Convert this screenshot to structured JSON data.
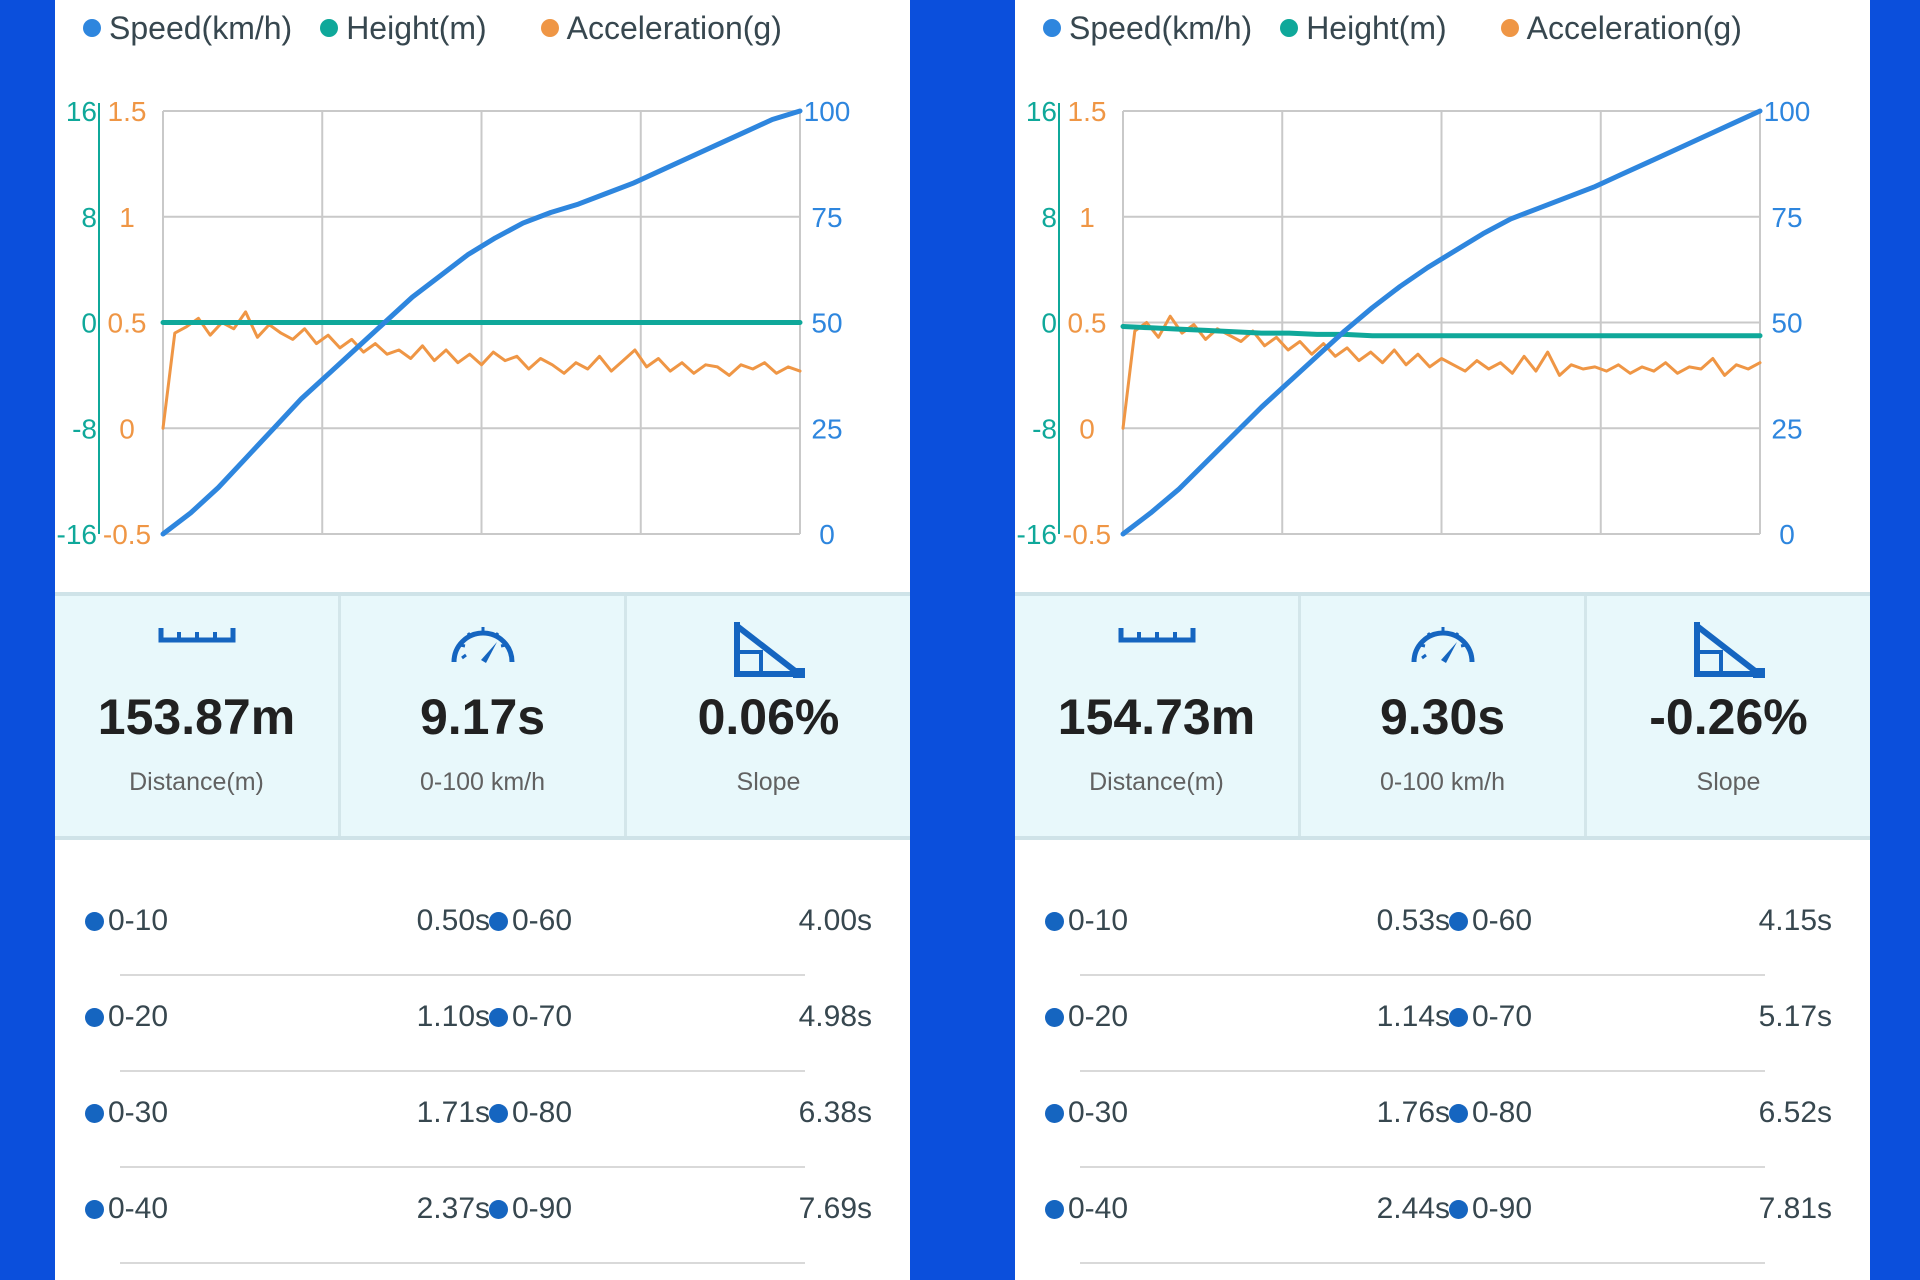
{
  "colors": {
    "speed": "#2e86de",
    "height": "#0fa89a",
    "acceleration": "#ef9645",
    "accent": "#1565c0",
    "background": "#0b4fdc"
  },
  "panels": [
    {
      "legend": [
        "Speed(km/h)",
        "Height(m)",
        "Acceleration(g)"
      ],
      "chart_data": {
        "type": "line",
        "axes": {
          "left_height": {
            "ticks": [
              "16",
              "8",
              "0",
              "-8",
              "-16"
            ],
            "range": [
              -16,
              16
            ]
          },
          "left_accel": {
            "ticks": [
              "1.5",
              "1",
              "0.5",
              "0",
              "-0.5"
            ],
            "range": [
              -0.5,
              1.5
            ]
          },
          "right_speed": {
            "ticks": [
              "100",
              "75",
              "50",
              "25",
              "0"
            ],
            "range": [
              0,
              100
            ]
          }
        },
        "grid": true,
        "legend_placement": "top",
        "series": [
          {
            "name": "Speed(km/h)",
            "axis": "right_speed",
            "values": [
              0,
              5,
              11,
              18,
              25,
              32,
              38,
              44,
              50,
              56,
              61,
              66,
              70,
              73.5,
              76,
              78,
              80.5,
              83,
              86,
              89,
              92,
              95,
              98,
              100
            ]
          },
          {
            "name": "Height(m)",
            "axis": "left_height",
            "values": [
              0,
              0,
              0,
              0,
              0,
              0,
              0,
              0,
              0,
              0,
              0,
              0,
              0,
              0,
              0,
              0,
              0,
              0,
              0,
              0,
              0,
              0,
              0,
              0
            ]
          },
          {
            "name": "Acceleration(g)",
            "axis": "left_accel",
            "values": [
              0,
              0.45,
              0.48,
              0.52,
              0.44,
              0.5,
              0.47,
              0.55,
              0.43,
              0.49,
              0.45,
              0.42,
              0.47,
              0.4,
              0.44,
              0.38,
              0.42,
              0.36,
              0.4,
              0.35,
              0.37,
              0.33,
              0.39,
              0.32,
              0.37,
              0.31,
              0.35,
              0.3,
              0.36,
              0.32,
              0.34,
              0.28,
              0.33,
              0.3,
              0.26,
              0.31,
              0.28,
              0.34,
              0.27,
              0.32,
              0.37,
              0.29,
              0.33,
              0.27,
              0.31,
              0.26,
              0.3,
              0.29,
              0.25,
              0.3,
              0.28,
              0.31,
              0.26,
              0.29,
              0.27
            ]
          }
        ]
      },
      "stats": [
        {
          "value": "153.87m",
          "label": "Distance(m)",
          "icon": "ruler-icon"
        },
        {
          "value": "9.17s",
          "label": "0-100 km/h",
          "icon": "speedometer-icon"
        },
        {
          "value": "0.06%",
          "label": "Slope",
          "icon": "slope-icon"
        }
      ],
      "splits": [
        [
          {
            "label": "0-10",
            "time": "0.50s"
          },
          {
            "label": "0-60",
            "time": "4.00s"
          }
        ],
        [
          {
            "label": "0-20",
            "time": "1.10s"
          },
          {
            "label": "0-70",
            "time": "4.98s"
          }
        ],
        [
          {
            "label": "0-30",
            "time": "1.71s"
          },
          {
            "label": "0-80",
            "time": "6.38s"
          }
        ],
        [
          {
            "label": "0-40",
            "time": "2.37s"
          },
          {
            "label": "0-90",
            "time": "7.69s"
          }
        ]
      ]
    },
    {
      "legend": [
        "Speed(km/h)",
        "Height(m)",
        "Acceleration(g)"
      ],
      "chart_data": {
        "type": "line",
        "axes": {
          "left_height": {
            "ticks": [
              "16",
              "8",
              "0",
              "-8",
              "-16"
            ],
            "range": [
              -16,
              16
            ]
          },
          "left_accel": {
            "ticks": [
              "1.5",
              "1",
              "0.5",
              "0",
              "-0.5"
            ],
            "range": [
              -0.5,
              1.5
            ]
          },
          "right_speed": {
            "ticks": [
              "100",
              "75",
              "50",
              "25",
              "0"
            ],
            "range": [
              0,
              100
            ]
          }
        },
        "grid": true,
        "legend_placement": "top",
        "series": [
          {
            "name": "Speed(km/h)",
            "axis": "right_speed",
            "values": [
              0,
              5,
              10.5,
              17,
              23.5,
              30,
              36,
              42,
              48,
              53.5,
              58.5,
              63,
              67,
              71,
              74.5,
              77,
              79.5,
              82,
              85,
              88,
              91,
              94,
              97,
              100
            ]
          },
          {
            "name": "Height(m)",
            "axis": "left_height",
            "values": [
              -0.3,
              -0.4,
              -0.5,
              -0.6,
              -0.7,
              -0.8,
              -0.8,
              -0.9,
              -0.9,
              -1,
              -1,
              -1,
              -1,
              -1,
              -1,
              -1,
              -1,
              -1,
              -1,
              -1,
              -1,
              -1,
              -1,
              -1
            ]
          },
          {
            "name": "Acceleration(g)",
            "axis": "left_accel",
            "values": [
              0,
              0.46,
              0.5,
              0.43,
              0.53,
              0.45,
              0.49,
              0.42,
              0.47,
              0.44,
              0.41,
              0.46,
              0.39,
              0.43,
              0.37,
              0.41,
              0.35,
              0.4,
              0.34,
              0.38,
              0.32,
              0.36,
              0.31,
              0.37,
              0.3,
              0.35,
              0.29,
              0.33,
              0.3,
              0.27,
              0.32,
              0.28,
              0.31,
              0.26,
              0.34,
              0.27,
              0.36,
              0.25,
              0.3,
              0.28,
              0.29,
              0.27,
              0.3,
              0.26,
              0.29,
              0.27,
              0.31,
              0.26,
              0.29,
              0.28,
              0.33,
              0.25,
              0.3,
              0.28,
              0.31
            ]
          }
        ]
      },
      "stats": [
        {
          "value": "154.73m",
          "label": "Distance(m)",
          "icon": "ruler-icon"
        },
        {
          "value": "9.30s",
          "label": "0-100 km/h",
          "icon": "speedometer-icon"
        },
        {
          "value": "-0.26%",
          "label": "Slope",
          "icon": "slope-icon"
        }
      ],
      "splits": [
        [
          {
            "label": "0-10",
            "time": "0.53s"
          },
          {
            "label": "0-60",
            "time": "4.15s"
          }
        ],
        [
          {
            "label": "0-20",
            "time": "1.14s"
          },
          {
            "label": "0-70",
            "time": "5.17s"
          }
        ],
        [
          {
            "label": "0-30",
            "time": "1.76s"
          },
          {
            "label": "0-80",
            "time": "6.52s"
          }
        ],
        [
          {
            "label": "0-40",
            "time": "2.44s"
          },
          {
            "label": "0-90",
            "time": "7.81s"
          }
        ]
      ]
    }
  ]
}
